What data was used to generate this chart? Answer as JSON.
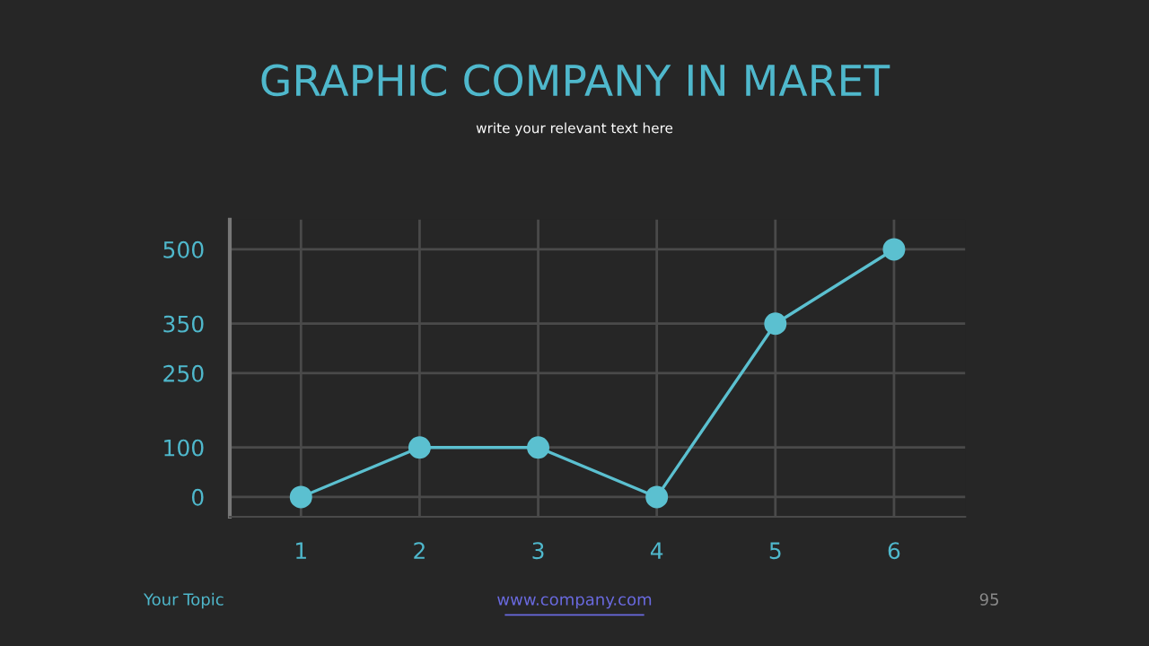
{
  "chart_data": {
    "type": "line",
    "title": "GRAPHIC COMPANY IN MARET",
    "subtitle": "write your relevant text here",
    "categories": [
      "1",
      "2",
      "3",
      "4",
      "5",
      "6"
    ],
    "series": [
      {
        "color": "#5bc0d0",
        "values": [
          0,
          100,
          100,
          0,
          350,
          500
        ]
      }
    ],
    "ylim": [
      -40,
      560
    ],
    "yticks": [
      0,
      100,
      250,
      350,
      500
    ],
    "grid": true,
    "marker": "circle",
    "line_style": "solid",
    "annotations": [
      "Your Topic",
      "www.company.com",
      "95"
    ]
  }
}
